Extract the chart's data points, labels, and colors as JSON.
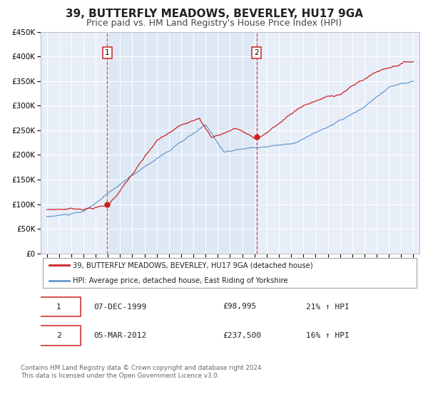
{
  "title": "39, BUTTERFLY MEADOWS, BEVERLEY, HU17 9GA",
  "subtitle": "Price paid vs. HM Land Registry's House Price Index (HPI)",
  "ylim": [
    0,
    450000
  ],
  "ytick_values": [
    0,
    50000,
    100000,
    150000,
    200000,
    250000,
    300000,
    350000,
    400000,
    450000
  ],
  "ytick_labels": [
    "£0",
    "£50K",
    "£100K",
    "£150K",
    "£200K",
    "£250K",
    "£300K",
    "£350K",
    "£400K",
    "£450K"
  ],
  "xlim_start": 1994.5,
  "xlim_end": 2025.5,
  "xtick_years": [
    1995,
    1996,
    1997,
    1998,
    1999,
    2000,
    2001,
    2002,
    2003,
    2004,
    2005,
    2006,
    2007,
    2008,
    2009,
    2010,
    2011,
    2012,
    2013,
    2014,
    2015,
    2016,
    2017,
    2018,
    2019,
    2020,
    2021,
    2022,
    2023,
    2024,
    2025
  ],
  "transaction1_x": 1999.95,
  "transaction1_y": 98995,
  "transaction1_label": "07-DEC-1999",
  "transaction1_price": "£98,995",
  "transaction1_hpi": "21% ↑ HPI",
  "transaction2_x": 2012.17,
  "transaction2_y": 237500,
  "transaction2_label": "05-MAR-2012",
  "transaction2_price": "£237,500",
  "transaction2_hpi": "16% ↑ HPI",
  "vline_color": "#dd4444",
  "dot_color": "#cc2222",
  "hpi_line_color": "#6699cc",
  "price_line_color": "#cc2222",
  "shade_color": "#dde8f5",
  "legend_label_price": "39, BUTTERFLY MEADOWS, BEVERLEY, HU17 9GA (detached house)",
  "legend_label_hpi": "HPI: Average price, detached house, East Riding of Yorkshire",
  "footer_text": "Contains HM Land Registry data © Crown copyright and database right 2024.\nThis data is licensed under the Open Government Licence v3.0.",
  "plot_bg_color": "#e8eef8",
  "grid_color": "#ffffff",
  "title_fontsize": 11,
  "subtitle_fontsize": 9,
  "tick_fontsize": 7.5
}
